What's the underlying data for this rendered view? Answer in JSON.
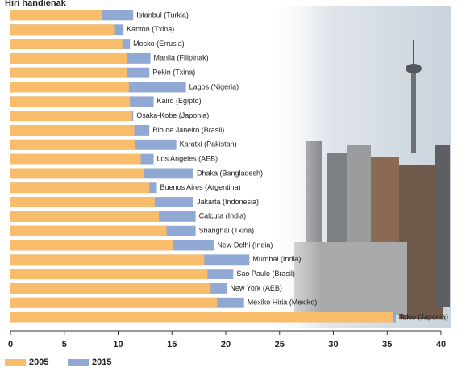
{
  "chart_data": {
    "type": "bar",
    "orientation": "horizontal",
    "overlap": true,
    "title": "Hiri handienak",
    "categories": [
      "Istanbul (Turkia)",
      "Kanton (Txina)",
      "Mosko (Errusia)",
      "Manila (Filipinak)",
      "Pekin (Txina)",
      "Lagos (Nigeria)",
      "Kairo (Egipto)",
      "Osaka-Kobe (Japonia)",
      "Rio de Janeiro (Brasil)",
      "Karatxi (Pakistan)",
      "Los Angeles (AEB)",
      "Dhaka (Bangladesh)",
      "Buenos Aires (Argentina)",
      "Jakarta (Indonesia)",
      "Calcuta (India)",
      "Shanghai (Txina)",
      "New Delhi (India)",
      "Mumbai (India)",
      "Sao Paulo (Brasil)",
      "New York (AEB)",
      "Mexiko Hiria (Mexiko)",
      "Tokio (Japonia)"
    ],
    "series": [
      {
        "name": "2015",
        "color": "#8fa8d4",
        "values": [
          11.4,
          10.5,
          11.1,
          13.0,
          12.9,
          16.3,
          13.3,
          11.4,
          12.9,
          15.4,
          13.3,
          17.0,
          13.6,
          17.0,
          17.2,
          17.2,
          18.9,
          22.2,
          20.7,
          20.1,
          21.7,
          35.8
        ]
      },
      {
        "name": "2005",
        "color": "#f7bd6b",
        "values": [
          8.5,
          9.7,
          10.4,
          10.8,
          10.8,
          11.0,
          11.1,
          11.3,
          11.5,
          11.6,
          12.1,
          12.4,
          12.9,
          13.4,
          13.8,
          14.5,
          15.1,
          18.0,
          18.3,
          18.6,
          19.2,
          35.5
        ]
      }
    ],
    "xlim": [
      0,
      40
    ],
    "xticks": [
      0,
      5,
      10,
      15,
      20,
      25,
      30,
      35,
      40
    ]
  }
}
